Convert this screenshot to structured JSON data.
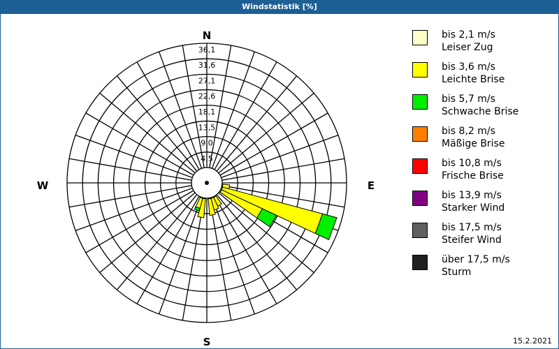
{
  "title": "Windstatistik [%]",
  "date": "15.2.2021",
  "compass": {
    "n": "N",
    "e": "E",
    "s": "S",
    "w": "W"
  },
  "ring_labels": [
    "4,5",
    "9,0",
    "13,5",
    "18,1",
    "22,6",
    "27,1",
    "31,6",
    "36,1"
  ],
  "legend": [
    {
      "range": "bis 2,1 m/s",
      "name": "Leiser Zug",
      "color": "#ffffcc"
    },
    {
      "range": "bis 3,6 m/s",
      "name": "Leichte Brise",
      "color": "#ffff00"
    },
    {
      "range": "bis 5,7 m/s",
      "name": "Schwache Brise",
      "color": "#00ee00"
    },
    {
      "range": "bis 8,2 m/s",
      "name": "Mäßige Brise",
      "color": "#ff8000"
    },
    {
      "range": "bis 10,8 m/s",
      "name": "Frische Brise",
      "color": "#ff0000"
    },
    {
      "range": "bis 13,9 m/s",
      "name": "Starker Wind",
      "color": "#800080"
    },
    {
      "range": "bis 17,5 m/s",
      "name": "Steifer Wind",
      "color": "#606060"
    },
    {
      "range": "über 17,5 m/s",
      "name": "Sturm",
      "color": "#202020"
    }
  ],
  "chart_data": {
    "type": "windrose",
    "title": "Windstatistik [%]",
    "radial_max": 36.1,
    "radial_ticks": [
      4.5,
      9.0,
      13.5,
      18.1,
      22.6,
      27.1,
      31.6,
      36.1
    ],
    "sector_width_deg": 10,
    "series": [
      {
        "name": "bis 2,1 m/s",
        "color": "#ffffcc"
      },
      {
        "name": "bis 3,6 m/s",
        "color": "#ffff00"
      },
      {
        "name": "bis 5,7 m/s",
        "color": "#00ee00"
      }
    ],
    "sectors": [
      {
        "direction_deg": 110,
        "values": [
          0.3,
          30.0,
          4.3
        ]
      },
      {
        "direction_deg": 120,
        "values": [
          0.3,
          13.0,
          4.5
        ]
      },
      {
        "direction_deg": 100,
        "values": [
          0.2,
          2.0,
          0
        ]
      },
      {
        "direction_deg": 150,
        "values": [
          0.2,
          2.8,
          0
        ]
      },
      {
        "direction_deg": 160,
        "values": [
          0.2,
          3.5,
          0
        ]
      },
      {
        "direction_deg": 170,
        "values": [
          0.2,
          4.8,
          0
        ]
      },
      {
        "direction_deg": 190,
        "values": [
          0.2,
          5.5,
          0
        ]
      },
      {
        "direction_deg": 200,
        "values": [
          0.2,
          3.0,
          0.8
        ]
      }
    ]
  }
}
